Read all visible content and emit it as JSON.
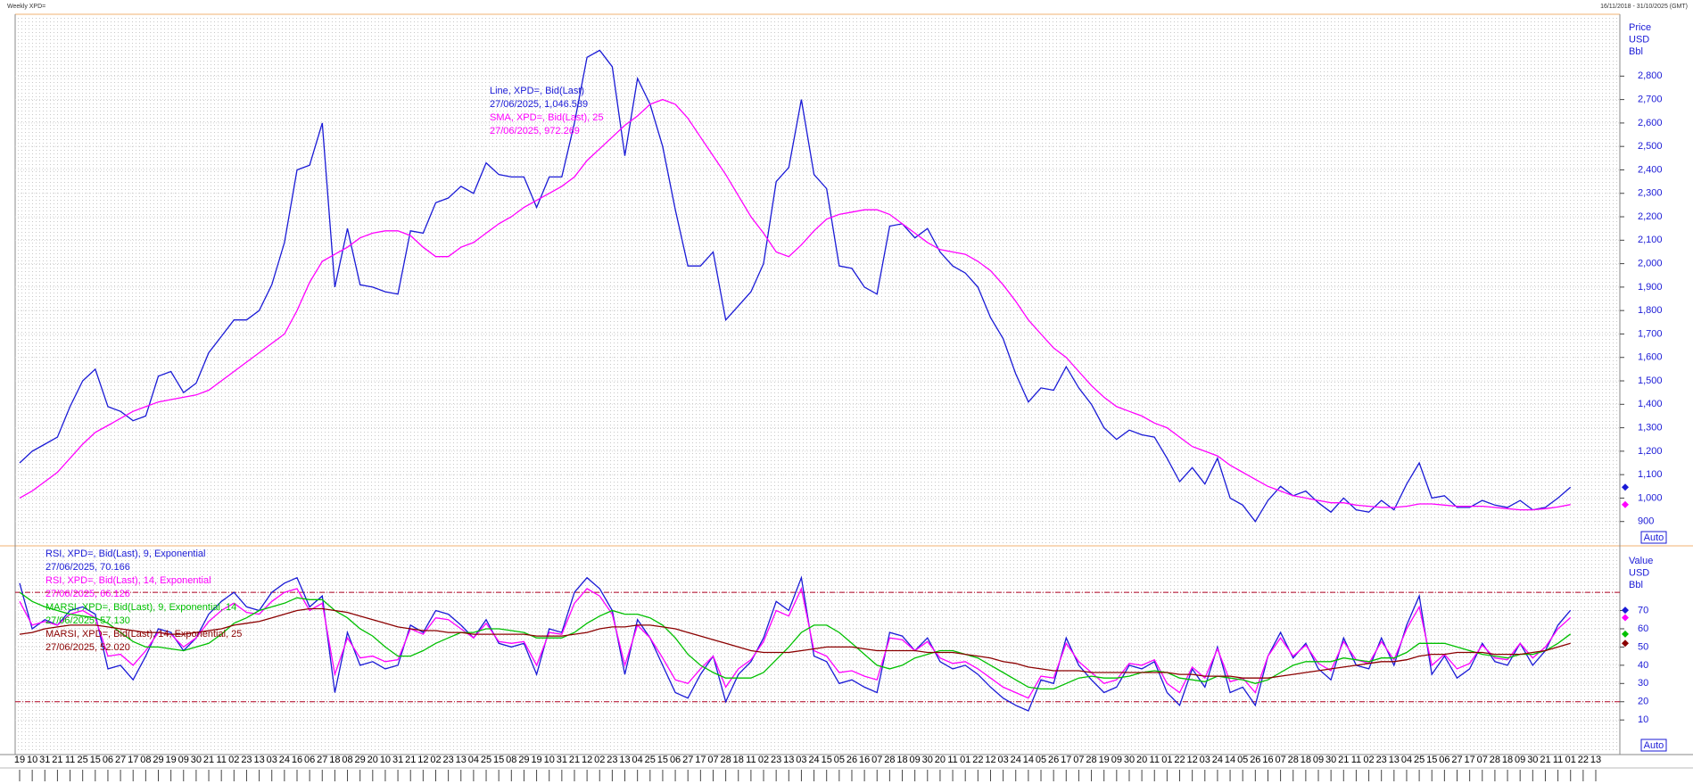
{
  "header": {
    "left": "Weekly XPD=",
    "right": "16/11/2018 - 31/10/2025 (GMT)"
  },
  "chart_data": [
    {
      "type": "line",
      "axis_title": [
        "Price",
        "USD",
        "Bbl"
      ],
      "button": "Auto",
      "categories": [
        "19",
        "10",
        "31",
        "21",
        "11",
        "25",
        "15",
        "06",
        "27",
        "17",
        "08",
        "29",
        "19",
        "09",
        "30",
        "21",
        "11",
        "02",
        "23",
        "13",
        "03",
        "24",
        "16",
        "06",
        "27",
        "18",
        "08",
        "29",
        "20",
        "10",
        "31",
        "21",
        "12",
        "02",
        "23",
        "13",
        "04",
        "25",
        "15",
        "08",
        "29",
        "19",
        "10",
        "31",
        "21",
        "12",
        "02",
        "23",
        "13",
        "04",
        "25",
        "15",
        "06",
        "27",
        "17",
        "07",
        "28",
        "18",
        "11",
        "02",
        "23",
        "13",
        "03",
        "24",
        "15",
        "05",
        "26",
        "16",
        "07",
        "28",
        "18",
        "09",
        "30",
        "20",
        "11",
        "01",
        "22",
        "12",
        "03",
        "24",
        "14",
        "05",
        "26",
        "17",
        "07",
        "28",
        "19",
        "09",
        "30",
        "20",
        "11",
        "01",
        "22",
        "12",
        "03",
        "24",
        "14",
        "05",
        "26",
        "16",
        "07",
        "28",
        "18",
        "09",
        "30",
        "21",
        "11",
        "02",
        "23",
        "13",
        "04",
        "25",
        "15",
        "06",
        "27",
        "17",
        "07",
        "28",
        "18",
        "09",
        "30",
        "21",
        "11",
        "01",
        "22",
        "13"
      ],
      "ylim": [
        800,
        3060
      ],
      "yticks": [
        900,
        {
          "value": 1000,
          "label": "1,000"
        },
        {
          "value": 1100,
          "label": "1,100"
        },
        {
          "value": 1200,
          "label": "1,200"
        },
        {
          "value": 1300,
          "label": "1,300"
        },
        {
          "value": 1400,
          "label": "1,400"
        },
        {
          "value": 1500,
          "label": "1,500"
        },
        {
          "value": 1600,
          "label": "1,600"
        },
        {
          "value": 1700,
          "label": "1,700"
        },
        {
          "value": 1800,
          "label": "1,800"
        },
        {
          "value": 1900,
          "label": "1,900"
        },
        {
          "value": 2000,
          "label": "2,000"
        },
        {
          "value": 2100,
          "label": "2,100"
        },
        {
          "value": 2200,
          "label": "2,200"
        },
        {
          "value": 2300,
          "label": "2,300"
        },
        {
          "value": 2400,
          "label": "2,400"
        },
        {
          "value": 2500,
          "label": "2,500"
        },
        {
          "value": 2600,
          "label": "2,600"
        },
        {
          "value": 2700,
          "label": "2,700"
        },
        {
          "value": 2800,
          "label": "2,800"
        }
      ],
      "grid": true,
      "series": [
        {
          "name": "Line, XPD=, Bid(Last)",
          "last_label": "27/06/2025, 1,046.589",
          "color": "#1a1ad6",
          "values": [
            1150,
            1200,
            1230,
            1260,
            1390,
            1500,
            1550,
            1390,
            1370,
            1330,
            1350,
            1520,
            1540,
            1450,
            1490,
            1620,
            1690,
            1760,
            1760,
            1800,
            1910,
            2090,
            2400,
            2420,
            2600,
            1900,
            2150,
            1910,
            1900,
            1880,
            1870,
            2140,
            2130,
            2260,
            2280,
            2330,
            2300,
            2430,
            2380,
            2370,
            2370,
            2240,
            2370,
            2370,
            2600,
            2880,
            2910,
            2840,
            2460,
            2790,
            2680,
            2500,
            2230,
            1990,
            1990,
            2050,
            1760,
            1820,
            1880,
            2000,
            2350,
            2410,
            2700,
            2380,
            2320,
            1990,
            1980,
            1900,
            1870,
            2160,
            2170,
            2110,
            2150,
            2050,
            1990,
            1960,
            1900,
            1770,
            1680,
            1530,
            1410,
            1470,
            1460,
            1560,
            1470,
            1400,
            1300,
            1250,
            1290,
            1270,
            1260,
            1170,
            1070,
            1130,
            1060,
            1170,
            1000,
            970,
            900,
            990,
            1050,
            1010,
            1030,
            980,
            940,
            1000,
            950,
            940,
            990,
            950,
            1060,
            1150,
            1000,
            1010,
            960,
            960,
            990,
            970,
            960,
            990,
            950,
            960,
            1000,
            1046.589,
            null,
            null
          ]
        },
        {
          "name": "SMA, XPD=, Bid(Last),  25",
          "last_label": "27/06/2025, 972.269",
          "color": "#ff00ff",
          "values": [
            1000,
            1030,
            1070,
            1110,
            1170,
            1230,
            1280,
            1310,
            1340,
            1370,
            1390,
            1410,
            1420,
            1430,
            1440,
            1460,
            1500,
            1540,
            1580,
            1620,
            1660,
            1700,
            1800,
            1920,
            2010,
            2040,
            2070,
            2110,
            2130,
            2140,
            2140,
            2120,
            2070,
            2030,
            2030,
            2070,
            2090,
            2130,
            2170,
            2200,
            2240,
            2270,
            2300,
            2330,
            2370,
            2440,
            2490,
            2540,
            2590,
            2630,
            2680,
            2700,
            2680,
            2620,
            2540,
            2460,
            2380,
            2290,
            2200,
            2130,
            2050,
            2030,
            2080,
            2140,
            2190,
            2210,
            2220,
            2230,
            2230,
            2210,
            2170,
            2130,
            2090,
            2060,
            2050,
            2040,
            2010,
            1970,
            1910,
            1840,
            1760,
            1700,
            1640,
            1600,
            1540,
            1480,
            1430,
            1390,
            1370,
            1350,
            1320,
            1300,
            1260,
            1220,
            1200,
            1180,
            1140,
            1110,
            1080,
            1050,
            1030,
            1010,
            1000,
            990,
            980,
            980,
            970,
            965,
            960,
            960,
            965,
            975,
            975,
            970,
            965,
            965,
            965,
            960,
            955,
            950,
            950,
            955,
            962,
            972.269,
            null,
            null
          ]
        }
      ]
    },
    {
      "type": "line",
      "axis_title": [
        "Value",
        "USD",
        "Bbl"
      ],
      "button": "Auto",
      "ylim": [
        -8,
        104
      ],
      "yticks": [
        10,
        20,
        30,
        40,
        50,
        60,
        70
      ],
      "reference_lines": [
        80,
        20
      ],
      "reference_color": "#b00020",
      "grid": true,
      "series": [
        {
          "name": "RSI, XPD=, Bid(Last),  9, Exponential",
          "last_label": "27/06/2025, 70.166",
          "color": "#1a1ad6",
          "values": [
            85,
            60,
            65,
            62,
            70,
            72,
            68,
            38,
            40,
            32,
            45,
            60,
            58,
            48,
            55,
            68,
            75,
            80,
            72,
            70,
            80,
            85,
            88,
            72,
            78,
            25,
            58,
            40,
            42,
            38,
            40,
            62,
            58,
            70,
            68,
            62,
            55,
            65,
            52,
            50,
            52,
            35,
            60,
            58,
            80,
            88,
            82,
            70,
            35,
            65,
            55,
            40,
            25,
            22,
            35,
            45,
            20,
            35,
            42,
            55,
            75,
            70,
            88,
            45,
            42,
            30,
            32,
            28,
            25,
            58,
            56,
            48,
            55,
            42,
            38,
            40,
            35,
            28,
            22,
            18,
            15,
            32,
            30,
            55,
            40,
            32,
            25,
            28,
            40,
            38,
            42,
            25,
            18,
            38,
            28,
            50,
            25,
            28,
            18,
            45,
            58,
            44,
            52,
            38,
            32,
            55,
            40,
            38,
            55,
            40,
            62,
            78,
            35,
            45,
            33,
            38,
            52,
            42,
            40,
            52,
            40,
            48,
            62,
            70.166,
            null,
            null
          ]
        },
        {
          "name": "RSI, XPD=, Bid(Last),  14, Exponential",
          "last_label": "27/06/2025, 66.126",
          "color": "#ff00ff",
          "values": [
            75,
            62,
            64,
            62,
            68,
            70,
            66,
            45,
            46,
            40,
            48,
            58,
            57,
            50,
            55,
            64,
            70,
            74,
            69,
            68,
            75,
            80,
            82,
            70,
            74,
            35,
            55,
            44,
            45,
            42,
            43,
            60,
            57,
            66,
            65,
            60,
            55,
            63,
            53,
            52,
            53,
            40,
            58,
            57,
            74,
            82,
            78,
            68,
            40,
            62,
            55,
            44,
            32,
            30,
            38,
            45,
            28,
            38,
            43,
            53,
            70,
            67,
            82,
            48,
            45,
            36,
            37,
            34,
            32,
            55,
            54,
            48,
            53,
            44,
            41,
            42,
            38,
            33,
            28,
            25,
            22,
            34,
            33,
            52,
            42,
            36,
            30,
            32,
            41,
            40,
            43,
            30,
            25,
            39,
            33,
            49,
            31,
            33,
            25,
            45,
            55,
            45,
            51,
            41,
            37,
            53,
            43,
            41,
            53,
            43,
            60,
            72,
            40,
            46,
            38,
            41,
            51,
            44,
            43,
            52,
            44,
            50,
            60,
            66.126,
            null,
            null
          ]
        },
        {
          "name": "MARSI, XPD=, Bid(Last),  9, Exponential, 14",
          "last_label": "27/06/2025, 57.130",
          "color": "#00c000",
          "values": [
            80,
            75,
            72,
            70,
            68,
            67,
            66,
            63,
            58,
            53,
            50,
            50,
            49,
            48,
            50,
            52,
            57,
            63,
            66,
            70,
            72,
            74,
            77,
            76,
            76,
            70,
            66,
            60,
            56,
            50,
            45,
            45,
            48,
            52,
            55,
            58,
            58,
            60,
            60,
            59,
            58,
            55,
            55,
            55,
            58,
            63,
            67,
            70,
            68,
            68,
            66,
            62,
            55,
            46,
            40,
            36,
            33,
            33,
            33,
            36,
            43,
            50,
            58,
            62,
            62,
            58,
            52,
            46,
            40,
            38,
            40,
            44,
            46,
            48,
            48,
            46,
            44,
            40,
            36,
            32,
            28,
            27,
            27,
            30,
            33,
            34,
            33,
            33,
            34,
            36,
            37,
            36,
            33,
            32,
            31,
            34,
            33,
            32,
            30,
            32,
            36,
            40,
            42,
            42,
            42,
            44,
            43,
            42,
            44,
            44,
            47,
            52,
            52,
            52,
            50,
            48,
            46,
            45,
            44,
            46,
            46,
            48,
            52,
            57.13,
            null,
            null
          ]
        },
        {
          "name": "MARSI, XPD=, Bid(Last),  14, Exponential, 25",
          "last_label": "27/06/2025, 52.020",
          "color": "#8b0000",
          "values": [
            57,
            58,
            60,
            61,
            62,
            62,
            62,
            61,
            60,
            59,
            58,
            58,
            57,
            57,
            58,
            59,
            60,
            62,
            63,
            64,
            66,
            68,
            70,
            71,
            71,
            70,
            69,
            67,
            65,
            63,
            61,
            60,
            59,
            59,
            58,
            58,
            57,
            57,
            57,
            57,
            57,
            56,
            56,
            56,
            57,
            58,
            60,
            61,
            61,
            62,
            62,
            61,
            60,
            58,
            56,
            54,
            52,
            50,
            48,
            47,
            47,
            47,
            48,
            49,
            50,
            50,
            50,
            49,
            48,
            48,
            48,
            48,
            47,
            47,
            47,
            46,
            45,
            44,
            42,
            41,
            39,
            38,
            37,
            37,
            37,
            36,
            36,
            36,
            36,
            36,
            36,
            36,
            35,
            35,
            34,
            34,
            34,
            33,
            33,
            33,
            34,
            35,
            36,
            37,
            38,
            39,
            40,
            41,
            42,
            42,
            43,
            45,
            46,
            46,
            47,
            47,
            47,
            46,
            46,
            46,
            47,
            48,
            50,
            52.02,
            null,
            null
          ]
        }
      ]
    }
  ]
}
